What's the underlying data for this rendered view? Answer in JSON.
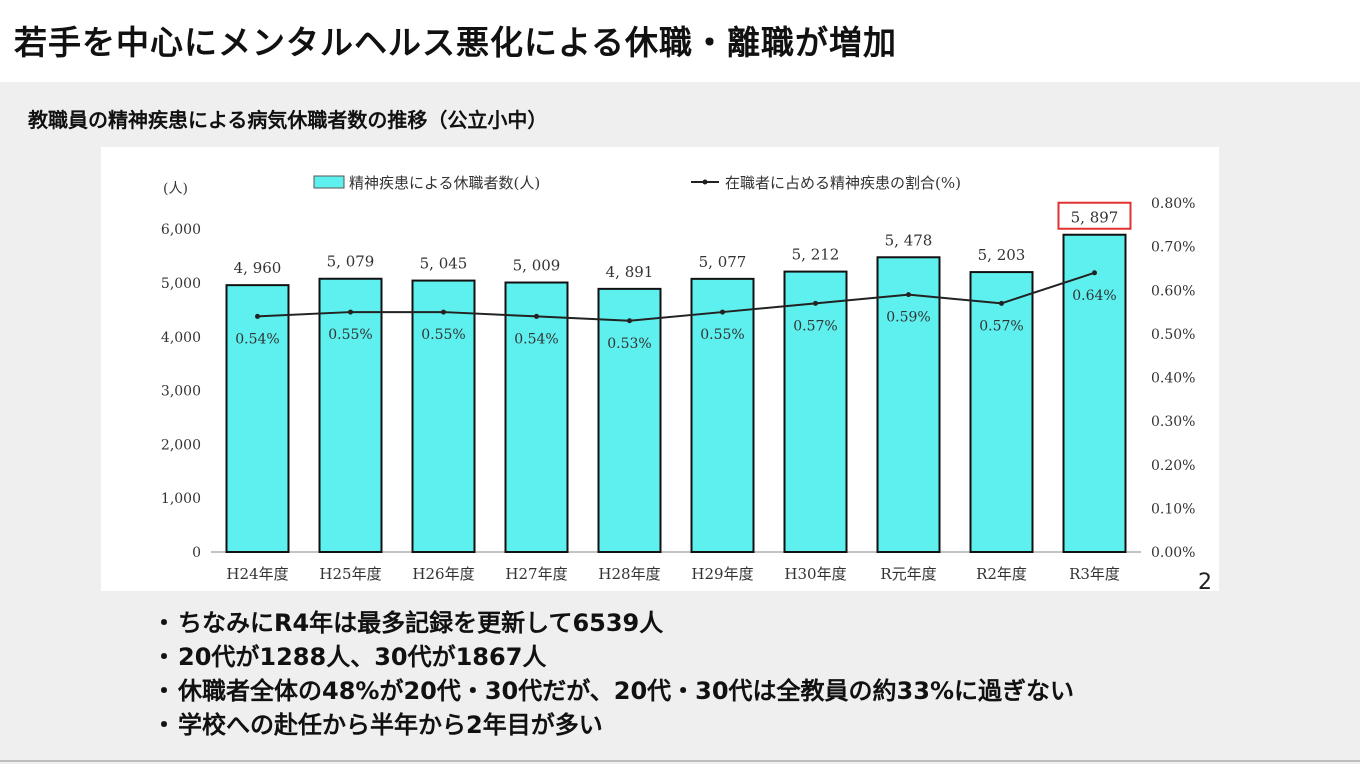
{
  "slide": {
    "title": "若手を中心にメンタルヘルス悪化による休職・離職が増加",
    "subtitle": "教職員の精神疾患による病気休職者数の推移（公立小中）",
    "page_number": "2",
    "bullets": [
      "ちなみにR4年は最多記録を更新して6539人",
      "20代が1288人、30代が1867人",
      "休職者全体の48%が20代・30代だが、20代・30代は全教員の約33%に過ぎない",
      "学校への赴任から半年から2年目が多い"
    ],
    "bullet_marker": "・"
  },
  "chart_data": {
    "type": "bar",
    "categories": [
      "H24年度",
      "H25年度",
      "H26年度",
      "H27年度",
      "H28年度",
      "H29年度",
      "H30年度",
      "R元年度",
      "R2年度",
      "R3年度"
    ],
    "series": [
      {
        "name": "精神疾患による休職者数(人)",
        "type": "bar",
        "axis": "left",
        "values": [
          4960,
          5079,
          5045,
          5009,
          4891,
          5077,
          5212,
          5478,
          5203,
          5897
        ],
        "labels": [
          "4, 960",
          "5, 079",
          "5, 045",
          "5, 009",
          "4, 891",
          "5, 077",
          "5, 212",
          "5, 478",
          "5, 203",
          "5, 897"
        ]
      },
      {
        "name": "在職者に占める精神疾患の割合(%)",
        "type": "line",
        "axis": "right",
        "values": [
          0.54,
          0.55,
          0.55,
          0.54,
          0.53,
          0.55,
          0.57,
          0.59,
          0.57,
          0.64
        ],
        "labels": [
          "0.54%",
          "0.55%",
          "0.55%",
          "0.54%",
          "0.53%",
          "0.55%",
          "0.57%",
          "0.59%",
          "0.57%",
          "0.64%"
        ]
      }
    ],
    "y_left": {
      "unit_label": "(人)",
      "range": [
        0,
        6500
      ],
      "ticks": [
        0,
        1000,
        2000,
        3000,
        4000,
        5000,
        6000
      ],
      "tick_labels": [
        "0",
        "1,000",
        "2,000",
        "3,000",
        "4,000",
        "5,000",
        "6,000"
      ]
    },
    "y_right": {
      "range": [
        0,
        0.8
      ],
      "ticks": [
        0,
        0.1,
        0.2,
        0.3,
        0.4,
        0.5,
        0.6,
        0.7,
        0.8
      ],
      "tick_labels": [
        "0.00%",
        "0.10%",
        "0.20%",
        "0.30%",
        "0.40%",
        "0.50%",
        "0.60%",
        "0.70%",
        "0.80%"
      ]
    },
    "highlight_index": 9,
    "colors": {
      "bar": "#5ef0ee",
      "bar_edge": "#111111",
      "line": "#222222",
      "highlight": "#e03030"
    },
    "legend_position": "top"
  }
}
